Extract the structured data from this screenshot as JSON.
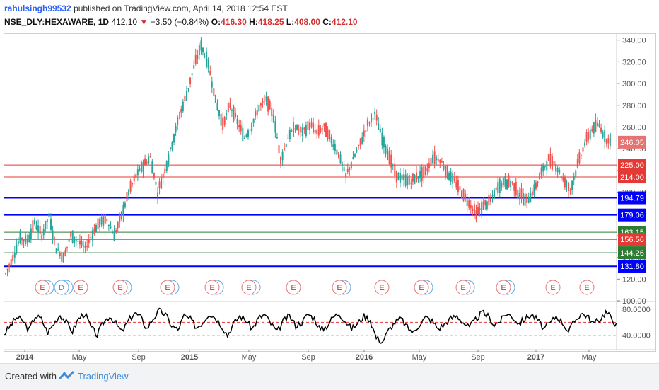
{
  "header": {
    "user": "rahulsingh99532",
    "published_text": "published on TradingView.com, April 14, 2018 12:54 EST",
    "symbol": "NSE_DLY:HEXAWARE, 1D",
    "last": "412.10",
    "change": "−3.50 (−0.84%)",
    "o_label": "O:",
    "o_value": "416.30",
    "h_label": "H:",
    "h_value": "418.25",
    "l_label": "L:",
    "l_value": "408.00",
    "c_label": "C:",
    "c_value": "412.10"
  },
  "footer": {
    "created_with": "Created with",
    "brand": "TradingView"
  },
  "colors": {
    "up": "#26a69a",
    "down": "#ef5350",
    "blue_line": "#0000ff",
    "red_line": "#e53935",
    "green_line": "#2e7d32",
    "osc_line": "#000000"
  },
  "chart_data": [
    {
      "type": "candlestick",
      "title": "NSE_DLY:HEXAWARE, 1D",
      "x_ticks": [
        "2014",
        "May",
        "Sep",
        "2015",
        "May",
        "Sep",
        "2016",
        "May",
        "Sep",
        "2017",
        "May"
      ],
      "y_ticks": [
        340,
        320,
        300,
        280,
        260,
        240,
        220,
        200,
        180,
        160,
        140,
        120,
        100
      ],
      "ylim": [
        100,
        345
      ],
      "last_price_label": "246.05",
      "last_price": 246.05,
      "horizontal_levels": [
        {
          "value": 225.0,
          "label": "225.00",
          "color": "red"
        },
        {
          "value": 214.0,
          "label": "214.00",
          "color": "red"
        },
        {
          "value": 194.79,
          "label": "194.79",
          "color": "blue"
        },
        {
          "value": 179.06,
          "label": "179.06",
          "color": "blue"
        },
        {
          "value": 163.15,
          "label": "163.15",
          "color": "green"
        },
        {
          "value": 156.56,
          "label": "156.56",
          "color": "red"
        },
        {
          "value": 144.26,
          "label": "144.26",
          "color": "green"
        },
        {
          "value": 131.8,
          "label": "131.80",
          "color": "blue"
        }
      ],
      "approx_close_path": [
        [
          0,
          125
        ],
        [
          4,
          140
        ],
        [
          8,
          158
        ],
        [
          12,
          155
        ],
        [
          16,
          172
        ],
        [
          20,
          160
        ],
        [
          24,
          178
        ],
        [
          28,
          148
        ],
        [
          32,
          140
        ],
        [
          36,
          160
        ],
        [
          40,
          155
        ],
        [
          44,
          148
        ],
        [
          48,
          162
        ],
        [
          52,
          172
        ],
        [
          56,
          175
        ],
        [
          60,
          160
        ],
        [
          64,
          178
        ],
        [
          68,
          200
        ],
        [
          72,
          215
        ],
        [
          76,
          225
        ],
        [
          80,
          232
        ],
        [
          84,
          200
        ],
        [
          88,
          220
        ],
        [
          92,
          245
        ],
        [
          96,
          270
        ],
        [
          100,
          290
        ],
        [
          104,
          315
        ],
        [
          108,
          335
        ],
        [
          112,
          318
        ],
        [
          116,
          285
        ],
        [
          120,
          262
        ],
        [
          124,
          280
        ],
        [
          128,
          265
        ],
        [
          132,
          250
        ],
        [
          136,
          262
        ],
        [
          140,
          278
        ],
        [
          144,
          285
        ],
        [
          148,
          270
        ],
        [
          152,
          230
        ],
        [
          156,
          250
        ],
        [
          160,
          260
        ],
        [
          164,
          255
        ],
        [
          168,
          262
        ],
        [
          172,
          255
        ],
        [
          176,
          260
        ],
        [
          180,
          248
        ],
        [
          184,
          235
        ],
        [
          188,
          215
        ],
        [
          192,
          230
        ],
        [
          196,
          245
        ],
        [
          200,
          262
        ],
        [
          204,
          272
        ],
        [
          208,
          250
        ],
        [
          212,
          232
        ],
        [
          216,
          215
        ],
        [
          220,
          212
        ],
        [
          224,
          210
        ],
        [
          228,
          215
        ],
        [
          232,
          218
        ],
        [
          236,
          232
        ],
        [
          240,
          230
        ],
        [
          244,
          218
        ],
        [
          248,
          210
        ],
        [
          252,
          200
        ],
        [
          256,
          190
        ],
        [
          260,
          180
        ],
        [
          264,
          188
        ],
        [
          268,
          192
        ],
        [
          272,
          205
        ],
        [
          276,
          210
        ],
        [
          280,
          208
        ],
        [
          284,
          198
        ],
        [
          288,
          192
        ],
        [
          292,
          202
        ],
        [
          296,
          218
        ],
        [
          300,
          230
        ],
        [
          304,
          225
        ],
        [
          308,
          212
        ],
        [
          312,
          202
        ],
        [
          316,
          225
        ],
        [
          320,
          245
        ],
        [
          324,
          258
        ],
        [
          328,
          262
        ],
        [
          332,
          248
        ],
        [
          336,
          250
        ]
      ],
      "events": [
        "E",
        "D",
        "E",
        "E",
        "E",
        "E",
        "E",
        "E",
        "E",
        "E",
        "E",
        "E",
        "E",
        "E",
        "E"
      ]
    },
    {
      "type": "line",
      "title": "",
      "y_ticks": [
        80,
        40
      ],
      "y_tick_labels": [
        "80.0000",
        "40.0000"
      ],
      "ylim": [
        20,
        90
      ],
      "reference_lines": [
        60,
        40
      ],
      "approx_values": [
        42,
        55,
        68,
        62,
        48,
        70,
        65,
        44,
        58,
        72,
        60,
        46,
        66,
        74,
        52,
        40,
        60,
        70,
        58,
        45,
        62,
        75,
        68,
        50,
        66,
        78,
        72,
        55,
        48,
        70,
        65,
        52,
        60,
        74,
        68,
        56,
        40,
        58,
        70,
        63,
        50,
        66,
        72,
        58,
        45,
        62,
        70,
        55,
        60,
        73,
        66,
        48,
        54,
        68,
        74,
        62,
        50,
        58,
        70,
        64,
        36,
        30,
        48,
        60,
        66,
        52,
        44,
        58,
        68,
        62,
        50,
        57,
        66,
        70,
        60,
        52,
        64,
        75,
        70,
        56,
        62,
        74,
        68,
        58,
        66,
        72,
        64,
        50,
        58,
        70,
        60,
        46,
        62,
        74,
        70,
        58,
        64,
        76,
        66,
        52
      ]
    }
  ]
}
